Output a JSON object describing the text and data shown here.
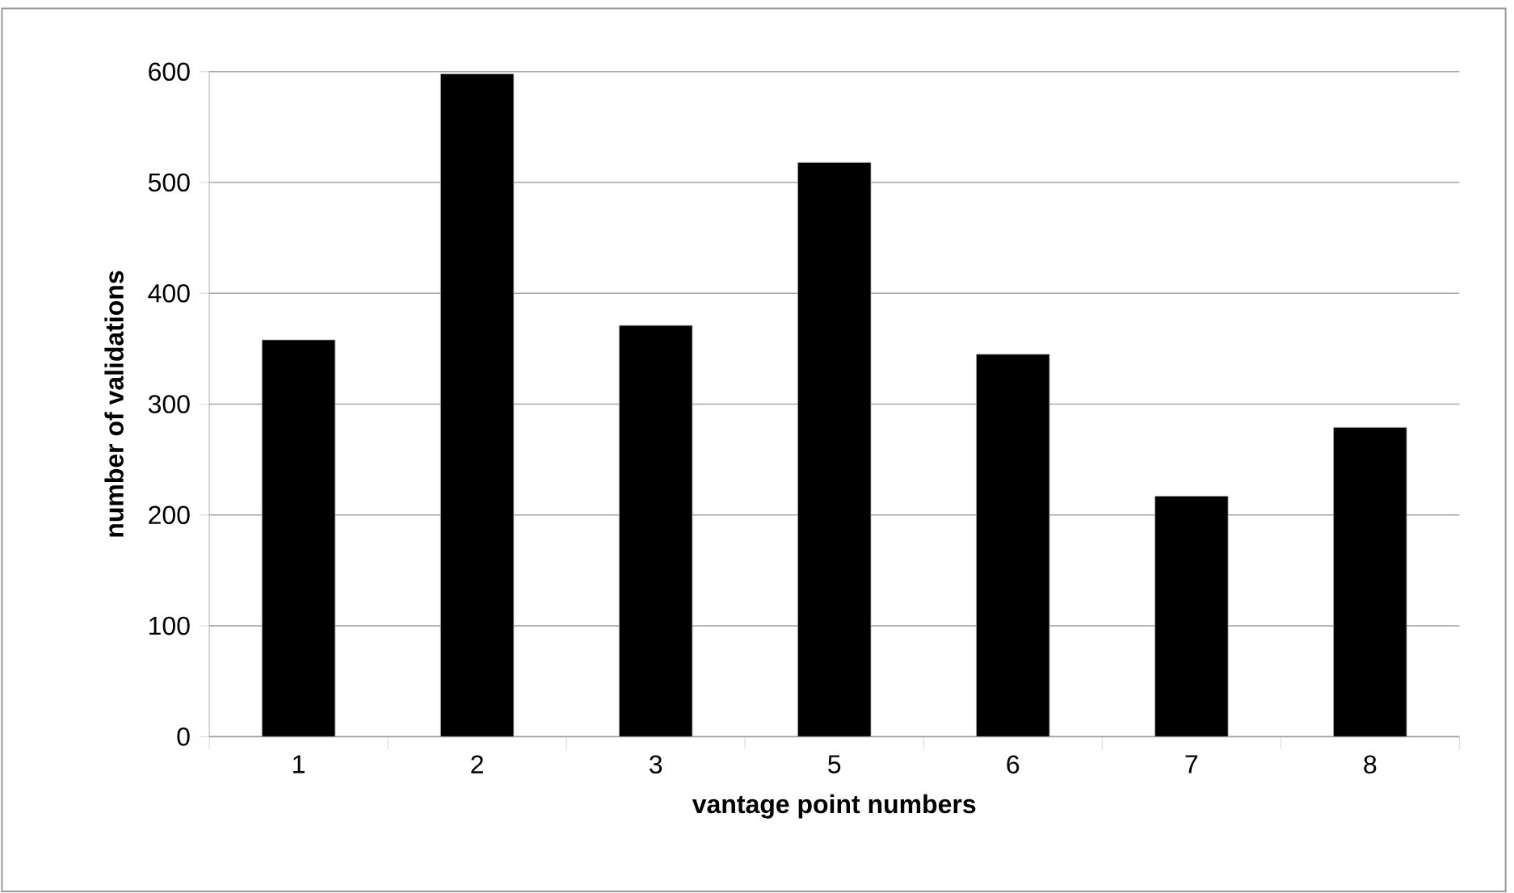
{
  "chart_data": {
    "type": "bar",
    "xlabel": "vantage point numbers",
    "ylabel": "number of validations",
    "categories": [
      "1",
      "2",
      "3",
      "5",
      "6",
      "7",
      "8"
    ],
    "values": [
      358,
      598,
      371,
      518,
      345,
      217,
      279
    ],
    "color": "#000000",
    "ylim": [
      0,
      600
    ],
    "yticks": [
      0,
      100,
      200,
      300,
      400,
      500,
      600
    ],
    "grid": "y"
  }
}
